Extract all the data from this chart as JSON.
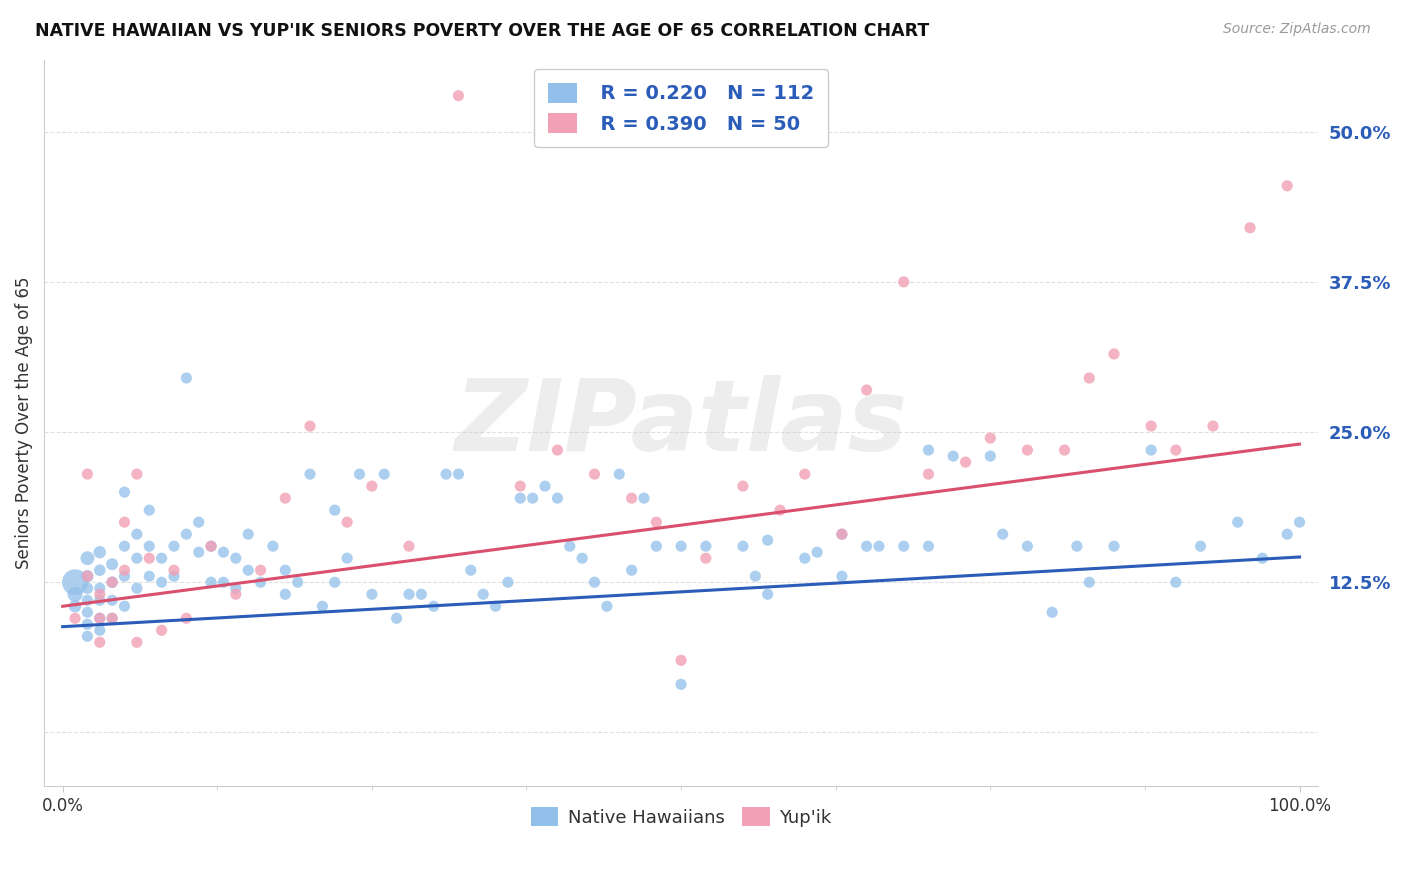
{
  "title": "NATIVE HAWAIIAN VS YUP'IK SENIORS POVERTY OVER THE AGE OF 65 CORRELATION CHART",
  "source": "Source: ZipAtlas.com",
  "ylabel": "Seniors Poverty Over the Age of 65",
  "yticks": [
    0.0,
    0.125,
    0.25,
    0.375,
    0.5
  ],
  "ytick_labels": [
    "",
    "12.5%",
    "25.0%",
    "37.5%",
    "50.0%"
  ],
  "xlim": [
    -0.015,
    1.015
  ],
  "ylim": [
    -0.045,
    0.56
  ],
  "blue_color": "#92C0EA",
  "pink_color": "#F2A0B5",
  "blue_line_color": "#2B5CB8",
  "pink_line_color": "#D94F6E",
  "blue_label": "Native Hawaiians",
  "pink_label": "Yup'ik",
  "blue_R": 0.22,
  "blue_N": 112,
  "pink_R": 0.39,
  "pink_N": 50,
  "blue_intercept": 0.088,
  "blue_slope": 0.058,
  "pink_intercept": 0.105,
  "pink_slope": 0.135,
  "background_color": "#FFFFFF",
  "watermark": "ZIPatlas",
  "grid_color": "#DDDDDD",
  "blue_points_x": [
    0.01,
    0.01,
    0.01,
    0.02,
    0.02,
    0.02,
    0.02,
    0.02,
    0.02,
    0.02,
    0.03,
    0.03,
    0.03,
    0.03,
    0.03,
    0.03,
    0.04,
    0.04,
    0.04,
    0.04,
    0.05,
    0.05,
    0.05,
    0.05,
    0.06,
    0.06,
    0.06,
    0.07,
    0.07,
    0.07,
    0.08,
    0.08,
    0.09,
    0.09,
    0.1,
    0.1,
    0.11,
    0.11,
    0.12,
    0.12,
    0.13,
    0.13,
    0.14,
    0.14,
    0.15,
    0.15,
    0.16,
    0.17,
    0.18,
    0.18,
    0.19,
    0.2,
    0.21,
    0.22,
    0.22,
    0.23,
    0.24,
    0.25,
    0.26,
    0.27,
    0.28,
    0.29,
    0.3,
    0.31,
    0.32,
    0.33,
    0.34,
    0.35,
    0.36,
    0.37,
    0.38,
    0.39,
    0.4,
    0.41,
    0.42,
    0.43,
    0.44,
    0.45,
    0.46,
    0.47,
    0.48,
    0.5,
    0.52,
    0.55,
    0.56,
    0.57,
    0.6,
    0.61,
    0.63,
    0.65,
    0.66,
    0.68,
    0.7,
    0.72,
    0.75,
    0.78,
    0.8,
    0.83,
    0.85,
    0.88,
    0.9,
    0.92,
    0.95,
    0.97,
    0.99,
    1.0,
    0.5,
    0.57,
    0.63,
    0.7,
    0.76,
    0.82
  ],
  "blue_points_y": [
    0.125,
    0.115,
    0.105,
    0.145,
    0.13,
    0.12,
    0.11,
    0.1,
    0.09,
    0.08,
    0.15,
    0.135,
    0.12,
    0.11,
    0.095,
    0.085,
    0.14,
    0.125,
    0.11,
    0.095,
    0.2,
    0.155,
    0.13,
    0.105,
    0.165,
    0.145,
    0.12,
    0.185,
    0.155,
    0.13,
    0.145,
    0.125,
    0.155,
    0.13,
    0.295,
    0.165,
    0.175,
    0.15,
    0.155,
    0.125,
    0.15,
    0.125,
    0.145,
    0.12,
    0.165,
    0.135,
    0.125,
    0.155,
    0.135,
    0.115,
    0.125,
    0.215,
    0.105,
    0.185,
    0.125,
    0.145,
    0.215,
    0.115,
    0.215,
    0.095,
    0.115,
    0.115,
    0.105,
    0.215,
    0.215,
    0.135,
    0.115,
    0.105,
    0.125,
    0.195,
    0.195,
    0.205,
    0.195,
    0.155,
    0.145,
    0.125,
    0.105,
    0.215,
    0.135,
    0.195,
    0.155,
    0.04,
    0.155,
    0.155,
    0.13,
    0.115,
    0.145,
    0.15,
    0.13,
    0.155,
    0.155,
    0.155,
    0.235,
    0.23,
    0.23,
    0.155,
    0.1,
    0.125,
    0.155,
    0.235,
    0.125,
    0.155,
    0.175,
    0.145,
    0.165,
    0.175,
    0.155,
    0.16,
    0.165,
    0.155,
    0.165,
    0.155
  ],
  "blue_sizes": [
    350,
    120,
    80,
    100,
    80,
    70,
    65,
    65,
    65,
    65,
    80,
    70,
    65,
    65,
    65,
    65,
    75,
    70,
    65,
    65,
    65,
    65,
    65,
    65,
    65,
    65,
    65,
    65,
    65,
    65,
    65,
    65,
    65,
    65,
    65,
    65,
    65,
    65,
    65,
    65,
    65,
    65,
    65,
    65,
    65,
    65,
    65,
    65,
    65,
    65,
    65,
    65,
    65,
    65,
    65,
    65,
    65,
    65,
    65,
    65,
    65,
    65,
    65,
    65,
    65,
    65,
    65,
    65,
    65,
    65,
    65,
    65,
    65,
    65,
    65,
    65,
    65,
    65,
    65,
    65,
    65,
    65,
    65,
    65,
    65,
    65,
    65,
    65,
    65,
    65,
    65,
    65,
    65,
    65,
    65,
    65,
    65,
    65,
    65,
    65,
    65,
    65,
    65,
    65,
    65,
    65,
    65,
    65,
    65,
    65,
    65,
    65
  ],
  "pink_points_x": [
    0.01,
    0.02,
    0.02,
    0.03,
    0.03,
    0.03,
    0.04,
    0.04,
    0.05,
    0.05,
    0.06,
    0.06,
    0.07,
    0.08,
    0.09,
    0.1,
    0.12,
    0.14,
    0.16,
    0.18,
    0.2,
    0.23,
    0.25,
    0.28,
    0.32,
    0.37,
    0.4,
    0.43,
    0.46,
    0.48,
    0.5,
    0.52,
    0.55,
    0.58,
    0.6,
    0.63,
    0.65,
    0.68,
    0.7,
    0.73,
    0.75,
    0.78,
    0.81,
    0.83,
    0.85,
    0.88,
    0.9,
    0.93,
    0.96,
    0.99
  ],
  "pink_points_y": [
    0.095,
    0.215,
    0.13,
    0.115,
    0.095,
    0.075,
    0.125,
    0.095,
    0.175,
    0.135,
    0.075,
    0.215,
    0.145,
    0.085,
    0.135,
    0.095,
    0.155,
    0.115,
    0.135,
    0.195,
    0.255,
    0.175,
    0.205,
    0.155,
    0.53,
    0.205,
    0.235,
    0.215,
    0.195,
    0.175,
    0.06,
    0.145,
    0.205,
    0.185,
    0.215,
    0.165,
    0.285,
    0.375,
    0.215,
    0.225,
    0.245,
    0.235,
    0.235,
    0.295,
    0.315,
    0.255,
    0.235,
    0.255,
    0.42,
    0.455
  ],
  "pink_sizes": [
    65,
    65,
    65,
    65,
    65,
    65,
    65,
    65,
    65,
    65,
    65,
    65,
    65,
    65,
    65,
    65,
    65,
    65,
    65,
    65,
    65,
    65,
    65,
    65,
    65,
    65,
    65,
    65,
    65,
    65,
    65,
    65,
    65,
    65,
    65,
    65,
    65,
    65,
    65,
    65,
    65,
    65,
    65,
    65,
    65,
    65,
    65,
    65,
    65,
    65
  ]
}
